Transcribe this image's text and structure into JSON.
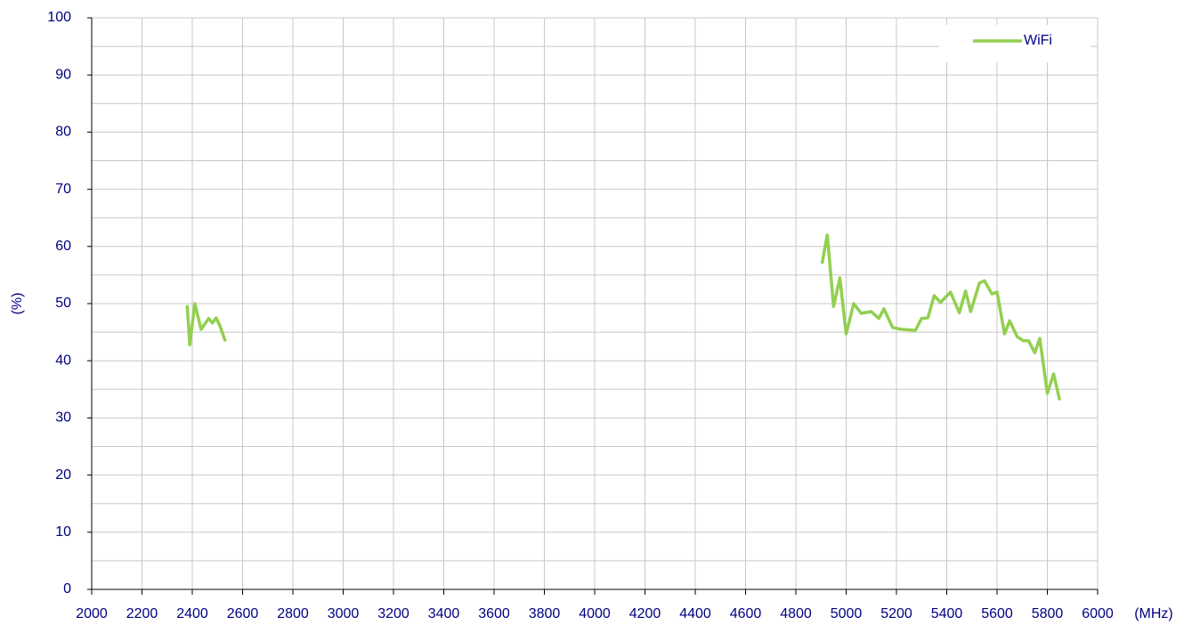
{
  "chart_data": {
    "type": "line",
    "xlabel": "(MHz)",
    "ylabel": "(%)",
    "x": [
      2380,
      2390,
      2410,
      2435,
      2465,
      2480,
      2495,
      2510,
      2530,
      3700,
      4905,
      4925,
      4950,
      4975,
      5000,
      5030,
      5060,
      5100,
      5130,
      5150,
      5185,
      5220,
      5275,
      5300,
      5325,
      5350,
      5375,
      5415,
      5450,
      5475,
      5495,
      5530,
      5550,
      5580,
      5600,
      5630,
      5650,
      5680,
      5705,
      5725,
      5750,
      5770,
      5800,
      5825,
      5848
    ],
    "series": [
      {
        "name": "WiFi",
        "color": "#92d050",
        "values": [
          49.5,
          42.8,
          50,
          45.5,
          47.4,
          46.6,
          47.5,
          46.1,
          43.6,
          null,
          57.2,
          62,
          49.5,
          54.5,
          44.7,
          50,
          48.3,
          48.6,
          47.4,
          49.1,
          45.8,
          45.5,
          45.3,
          47.4,
          47.5,
          51.4,
          50.2,
          52,
          48.4,
          52.2,
          48.6,
          53.6,
          54,
          51.7,
          52,
          44.7,
          47,
          44.2,
          43.5,
          43.5,
          41.4,
          43.9,
          34.3,
          37.7,
          33.3
        ]
      }
    ],
    "xlim": [
      2000,
      6000
    ],
    "xticks": [
      2000,
      2200,
      2400,
      2600,
      2800,
      3000,
      3200,
      3400,
      3600,
      3800,
      4000,
      4200,
      4400,
      4600,
      4800,
      5000,
      5200,
      5400,
      5600,
      5800,
      6000
    ],
    "ylim": [
      0,
      100
    ],
    "yticks": [
      0,
      10,
      20,
      30,
      40,
      50,
      60,
      70,
      80,
      90,
      100
    ],
    "yminorticks": [
      5,
      15,
      25,
      35,
      45,
      55,
      65,
      75,
      85,
      95
    ],
    "grid": true,
    "legend": "upper right"
  }
}
